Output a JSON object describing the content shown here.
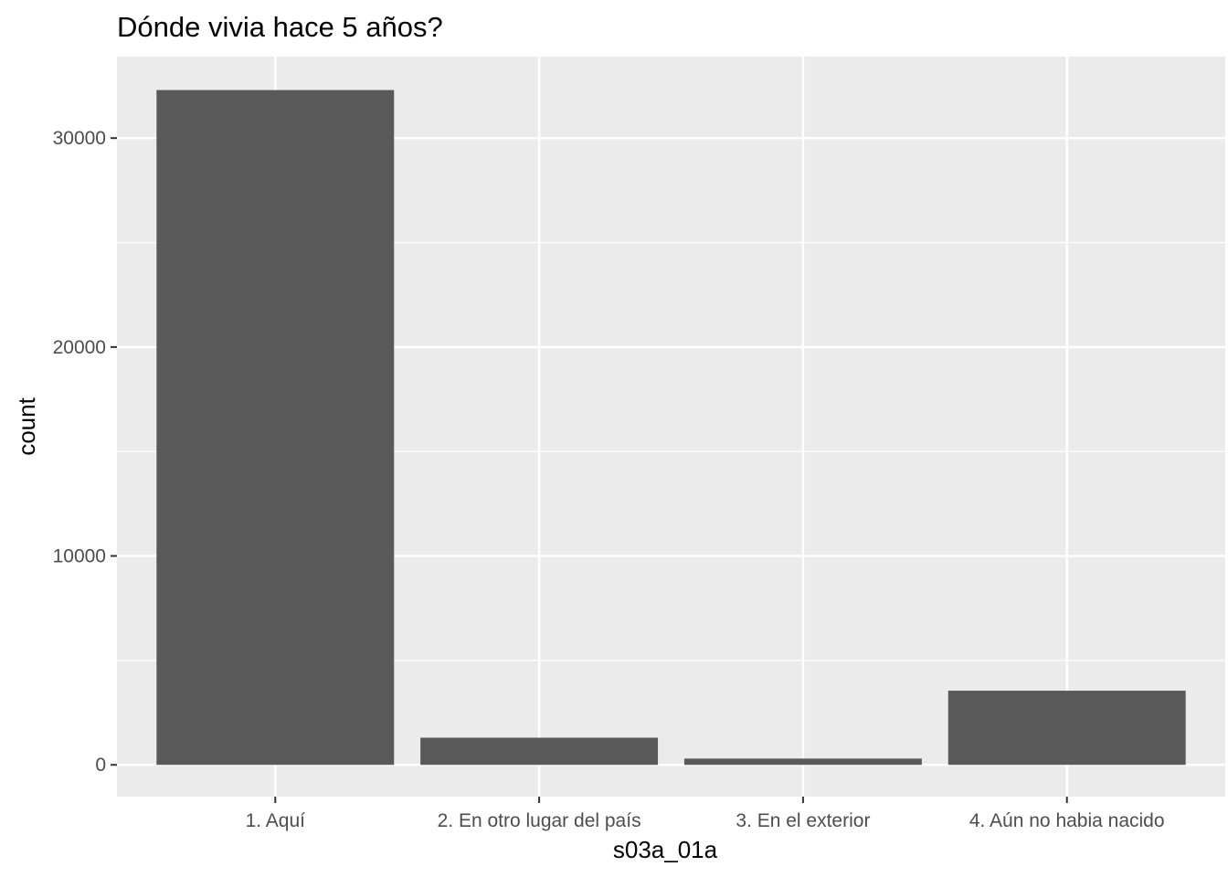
{
  "chart_data": {
    "type": "bar",
    "title": "Dónde vivia hace 5 años?",
    "xlabel": "s03a_01a",
    "ylabel": "count",
    "categories": [
      "1. Aquí",
      "2. En otro lugar del país",
      "3. En el exterior",
      "4. Aún no habia nacido"
    ],
    "values": [
      32300,
      1300,
      300,
      3550
    ],
    "ylim": [
      -1520,
      33900
    ],
    "yticks": [
      0,
      10000,
      20000,
      30000
    ],
    "grid": true,
    "colors": {
      "panel": "#ebebeb",
      "grid": "#ffffff",
      "bar": "#595959",
      "tick": "#333333"
    }
  }
}
